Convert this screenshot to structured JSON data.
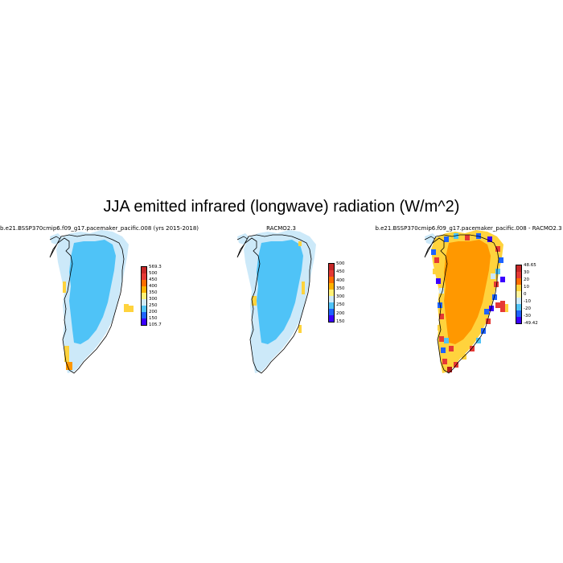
{
  "title": "JJA emitted infrared (longwave) radiation (W/m^2)",
  "colors": {
    "ice": "#4fc3f7",
    "pale": "#cce9f9",
    "orange": "#ff9800",
    "yellow": "#ffd33d",
    "red": "#e53935",
    "darkred": "#b71c1c",
    "blue": "#1e63ff",
    "violet": "#3a00ff",
    "coast": "#000000"
  },
  "panels": [
    {
      "title": "b.e21.BSSP370cmip6.f09_g17.pacemaker_pacific.008 (yrs 2015-2018)",
      "variant": "model",
      "colorbar": {
        "labels": [
          "569.3",
          "500",
          "450",
          "400",
          "350",
          "300",
          "250",
          "200",
          "150",
          "105.7"
        ],
        "colors": [
          "#c62828",
          "#e53935",
          "#ff6d00",
          "#ffb300",
          "#fff176",
          "#cfeaf9",
          "#4fc3f7",
          "#1e63ff",
          "#3a00ff"
        ]
      }
    },
    {
      "title": "RACMO2.3",
      "variant": "obs",
      "colorbar": {
        "labels": [
          "500",
          "450",
          "400",
          "350",
          "300",
          "250",
          "200",
          "150"
        ],
        "colors": [
          "#c62828",
          "#e53935",
          "#ff6d00",
          "#ffb300",
          "#fff176",
          "#cfeaf9",
          "#4fc3f7",
          "#1e63ff",
          "#3a00ff"
        ]
      }
    },
    {
      "title": "b.e21.BSSP370cmip6.f09_g17.pacemaker_pacific.008 - RACMO2.3",
      "variant": "diff",
      "colorbar": {
        "labels": [
          "48.65",
          "30",
          "20",
          "10",
          "0",
          "-10",
          "-20",
          "-30",
          "-49.42"
        ],
        "colors": [
          "#c62828",
          "#e53935",
          "#ff6d00",
          "#ffd33d",
          "#fff59d",
          "#cfeaf9",
          "#4fc3f7",
          "#1e63ff",
          "#3a00ff"
        ]
      }
    }
  ]
}
